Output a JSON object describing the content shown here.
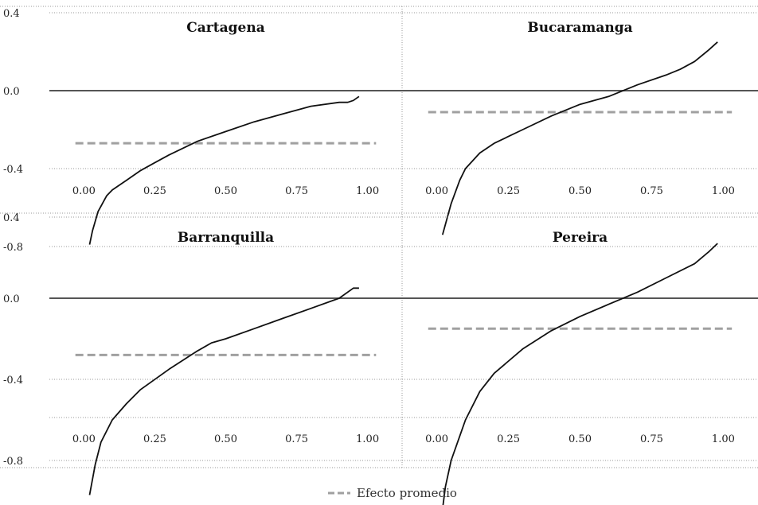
{
  "legend": {
    "label": "Efecto promedio",
    "line_color": "#a0a0a0"
  },
  "colors": {
    "curve": "#111111",
    "zero_line": "#555555",
    "grid": "#999999"
  },
  "chart_data": [
    {
      "type": "line",
      "title": "Cartagena",
      "xlabel": "",
      "ylabel": "",
      "x_ticks": [
        "0.00",
        "0.25",
        "0.50",
        "0.75",
        "1.00"
      ],
      "y_ticks": [
        "0.4",
        "0.0",
        "-0.4",
        "-0.8"
      ],
      "xlim": [
        -0.06,
        1.06
      ],
      "ylim": [
        -0.8,
        0.4
      ],
      "average_effect": -0.27,
      "average_x_range": [
        -0.03,
        1.03
      ],
      "series": [
        {
          "x": [
            0.02,
            0.03,
            0.05,
            0.08,
            0.1,
            0.15,
            0.2,
            0.25,
            0.3,
            0.4,
            0.5,
            0.6,
            0.7,
            0.8,
            0.9,
            0.93,
            0.95,
            0.97
          ],
          "y": [
            -0.79,
            -0.72,
            -0.62,
            -0.54,
            -0.51,
            -0.46,
            -0.41,
            -0.37,
            -0.33,
            -0.26,
            -0.21,
            -0.16,
            -0.12,
            -0.08,
            -0.06,
            -0.06,
            -0.05,
            -0.03
          ]
        }
      ]
    },
    {
      "type": "line",
      "title": "Bucaramanga",
      "xlabel": "",
      "ylabel": "",
      "x_ticks": [
        "0.00",
        "0.25",
        "0.50",
        "0.75",
        "1.00"
      ],
      "y_ticks": [],
      "xlim": [
        -0.06,
        1.06
      ],
      "ylim": [
        -0.8,
        0.4
      ],
      "average_effect": -0.11,
      "average_x_range": [
        -0.03,
        1.03
      ],
      "series": [
        {
          "x": [
            0.02,
            0.05,
            0.08,
            0.1,
            0.15,
            0.2,
            0.3,
            0.4,
            0.5,
            0.6,
            0.7,
            0.8,
            0.85,
            0.9,
            0.95,
            0.98
          ],
          "y": [
            -0.74,
            -0.58,
            -0.46,
            -0.4,
            -0.32,
            -0.27,
            -0.2,
            -0.13,
            -0.07,
            -0.03,
            0.03,
            0.08,
            0.11,
            0.15,
            0.21,
            0.25
          ]
        }
      ]
    },
    {
      "type": "line",
      "title": "Barranquilla",
      "xlabel": "",
      "ylabel": "",
      "x_ticks": [
        "0.00",
        "0.25",
        "0.50",
        "0.75",
        "1.00"
      ],
      "y_ticks": [
        "0.4",
        "0.0",
        "-0.4",
        "-0.8"
      ],
      "xlim": [
        -0.06,
        1.06
      ],
      "ylim": [
        -1.1,
        0.4
      ],
      "average_effect": -0.28,
      "average_x_range": [
        -0.03,
        1.03
      ],
      "series": [
        {
          "x": [
            0.02,
            0.04,
            0.06,
            0.1,
            0.15,
            0.2,
            0.3,
            0.4,
            0.45,
            0.5,
            0.6,
            0.7,
            0.8,
            0.9,
            0.95,
            0.97
          ],
          "y": [
            -0.97,
            -0.82,
            -0.71,
            -0.6,
            -0.52,
            -0.45,
            -0.35,
            -0.26,
            -0.22,
            -0.2,
            -0.15,
            -0.1,
            -0.05,
            0.0,
            0.05,
            0.05
          ]
        }
      ]
    },
    {
      "type": "line",
      "title": "Pereira",
      "xlabel": "",
      "ylabel": "",
      "x_ticks": [
        "0.00",
        "0.25",
        "0.50",
        "0.75",
        "1.00"
      ],
      "y_ticks": [],
      "xlim": [
        -0.06,
        1.06
      ],
      "ylim": [
        -1.1,
        0.4
      ],
      "average_effect": -0.15,
      "average_x_range": [
        -0.03,
        1.03
      ],
      "series": [
        {
          "x": [
            0.02,
            0.03,
            0.05,
            0.08,
            0.1,
            0.15,
            0.2,
            0.3,
            0.4,
            0.5,
            0.6,
            0.7,
            0.8,
            0.9,
            0.95,
            0.98
          ],
          "y": [
            -1.04,
            -0.93,
            -0.8,
            -0.68,
            -0.6,
            -0.46,
            -0.37,
            -0.25,
            -0.16,
            -0.09,
            -0.03,
            0.03,
            0.1,
            0.17,
            0.23,
            0.27
          ]
        }
      ]
    }
  ]
}
